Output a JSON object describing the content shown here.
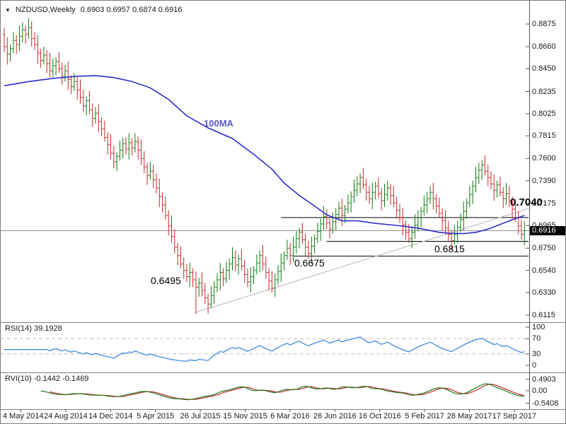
{
  "window": {
    "title_symbol": "NZDUSD,Weekly",
    "title_ohlc": "0.6903 0.6957 0.6874 0.6916"
  },
  "icons": {
    "symbol_dropdown": "▼"
  },
  "colors": {
    "up": "#0E7C0E",
    "down": "#C42A2A",
    "ma": "#2E2EC9",
    "ma_label": "#5757CE",
    "rsi": "#3C8BDC",
    "rvi": "#1B7A1B",
    "rvi_signal": "#C42A2A",
    "level_line": "#000000",
    "trendline": "#C9C9C9",
    "current_price_line": "#8C8C8C",
    "grid_dash": "#BDBDBD",
    "separator": "#808080",
    "price_tag_bg": "#000000",
    "price_tag_text": "#FFFFFF"
  },
  "panes": {
    "rsi": {
      "label": "RSI(14) 39.1928",
      "value": 39.1928,
      "axis_labels": [
        "100",
        "70",
        "30",
        "0"
      ],
      "dashed_levels": [
        70,
        30
      ]
    },
    "rvi": {
      "label": "RVI(10) -0.1442 -0.1469",
      "values": [
        -0.1442,
        -0.1469
      ],
      "axis_labels": [
        "0.4903",
        "0.00",
        "-0.5408"
      ]
    }
  },
  "chart_data": {
    "type": "bar",
    "title": "NZDUSD,Weekly",
    "symbol": "NZDUSD",
    "timeframe": "Weekly",
    "last_quote": {
      "open": 0.6903,
      "high": 0.6957,
      "low": 0.6874,
      "close": 0.6916
    },
    "price_axis": {
      "labels": [
        "0.8875",
        "0.8660",
        "0.8450",
        "0.8235",
        "0.8025",
        "0.7815",
        "0.7600",
        "0.7390",
        "0.7175",
        "0.6965",
        "0.6750",
        "0.6540",
        "0.6330",
        "0.6115"
      ],
      "min": 0.6115,
      "max": 0.8875
    },
    "x_axis": {
      "labels": [
        "4 May 2014",
        "24 Aug 2014",
        "14 Dec 2014",
        "5 Apr 2015",
        "26 Jul 2015",
        "15 Nov 2015",
        "6 Mar 2016",
        "26 Jun 2016",
        "16 Oct 2016",
        "5 Feb 2017",
        "28 May 2017",
        "17 Sep 2017"
      ]
    },
    "first_open": 0.878,
    "closes": [
      0.866,
      0.859,
      0.864,
      0.872,
      0.868,
      0.876,
      0.882,
      0.878,
      0.884,
      0.874,
      0.868,
      0.86,
      0.853,
      0.858,
      0.85,
      0.843,
      0.848,
      0.852,
      0.845,
      0.838,
      0.843,
      0.835,
      0.828,
      0.833,
      0.825,
      0.818,
      0.81,
      0.815,
      0.806,
      0.798,
      0.803,
      0.795,
      0.788,
      0.78,
      0.773,
      0.765,
      0.757,
      0.762,
      0.768,
      0.774,
      0.769,
      0.775,
      0.77,
      0.776,
      0.768,
      0.76,
      0.752,
      0.744,
      0.748,
      0.74,
      0.732,
      0.724,
      0.716,
      0.706,
      0.696,
      0.686,
      0.676,
      0.668,
      0.66,
      0.654,
      0.648,
      0.652,
      0.645,
      0.638,
      0.642,
      0.635,
      0.628,
      0.622,
      0.63,
      0.638,
      0.645,
      0.652,
      0.646,
      0.654,
      0.66,
      0.666,
      0.659,
      0.665,
      0.658,
      0.65,
      0.643,
      0.648,
      0.654,
      0.661,
      0.668,
      0.66,
      0.652,
      0.644,
      0.637,
      0.645,
      0.653,
      0.661,
      0.668,
      0.675,
      0.668,
      0.676,
      0.684,
      0.69,
      0.683,
      0.676,
      0.67,
      0.677,
      0.684,
      0.691,
      0.698,
      0.705,
      0.699,
      0.693,
      0.7,
      0.707,
      0.713,
      0.706,
      0.712,
      0.718,
      0.724,
      0.73,
      0.736,
      0.742,
      0.735,
      0.728,
      0.722,
      0.728,
      0.734,
      0.727,
      0.72,
      0.726,
      0.732,
      0.725,
      0.718,
      0.711,
      0.704,
      0.697,
      0.69,
      0.684,
      0.69,
      0.697,
      0.704,
      0.71,
      0.716,
      0.722,
      0.728,
      0.722,
      0.715,
      0.708,
      0.701,
      0.694,
      0.688,
      0.682,
      0.688,
      0.695,
      0.702,
      0.71,
      0.718,
      0.726,
      0.734,
      0.742,
      0.749,
      0.754,
      0.748,
      0.742,
      0.736,
      0.73,
      0.735,
      0.728,
      0.722,
      0.727,
      0.72,
      0.712,
      0.704,
      0.696,
      0.688,
      0.6916
    ],
    "spike": {
      "index": 63,
      "low": 0.6125
    },
    "ma100": {
      "label": "100MA",
      "points": [
        [
          0,
          0.829
        ],
        [
          8,
          0.833
        ],
        [
          16,
          0.836
        ],
        [
          24,
          0.838
        ],
        [
          30,
          0.8385
        ],
        [
          36,
          0.8368
        ],
        [
          42,
          0.833
        ],
        [
          48,
          0.827
        ],
        [
          54,
          0.816
        ],
        [
          60,
          0.8005
        ],
        [
          67,
          0.789
        ],
        [
          75,
          0.779
        ],
        [
          82,
          0.764
        ],
        [
          88,
          0.75
        ],
        [
          92,
          0.7368
        ],
        [
          97,
          0.725
        ],
        [
          102,
          0.715
        ],
        [
          106,
          0.7066
        ],
        [
          111,
          0.701
        ],
        [
          116,
          0.701
        ],
        [
          122,
          0.6985
        ],
        [
          129,
          0.6966
        ],
        [
          136,
          0.694
        ],
        [
          143,
          0.69
        ],
        [
          147,
          0.689
        ],
        [
          151,
          0.6888
        ],
        [
          155,
          0.69
        ],
        [
          159,
          0.693
        ],
        [
          163,
          0.6975
        ],
        [
          167,
          0.702
        ],
        [
          171,
          0.706
        ]
      ]
    },
    "levels": [
      {
        "label": "0.7040",
        "price": 0.704,
        "from_bar": 91,
        "line": true,
        "bold": true
      },
      {
        "label": "0.6815",
        "price": 0.6815,
        "from_bar": 106,
        "line": true,
        "bold": false
      },
      {
        "label": "0.6675",
        "price": 0.6675,
        "from_bar": 95,
        "line": true,
        "bold": false
      },
      {
        "label": "0.6495",
        "price": 0.6495,
        "line": false,
        "bold": false
      }
    ],
    "trendline": {
      "from_bar": 63,
      "from_price": 0.6142,
      "to_bar": 172.5,
      "to_price": 0.7127
    },
    "current_price": 0.6916,
    "current_price_label": "0.6916"
  }
}
